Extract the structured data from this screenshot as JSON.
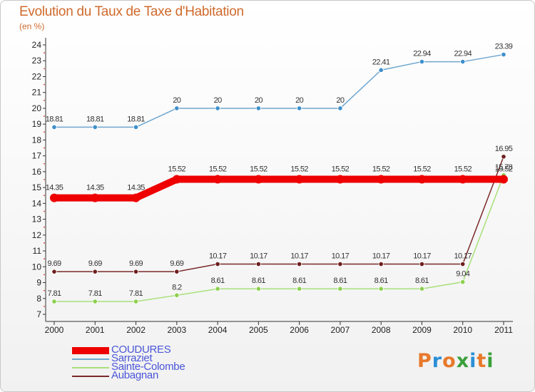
{
  "chart": {
    "title": "Evolution du Taux de Taxe d'Habitation",
    "unit": "(en %)"
  },
  "logo": {
    "text": "Proxiti",
    "colors": [
      "#e8792b",
      "#2b8fd6",
      "#e8792b",
      "#3aa03a",
      "#2b8fd6",
      "#e8792b",
      "#3aa03a"
    ]
  },
  "chart_data": {
    "type": "line",
    "title": "Evolution du Taux de Taxe d'Habitation",
    "subtitle": "(en %)",
    "xlabel": "",
    "ylabel": "",
    "x": [
      "2000",
      "2001",
      "2002",
      "2003",
      "2004",
      "2005",
      "2006",
      "2007",
      "2008",
      "2009",
      "2010",
      "2011"
    ],
    "ylim": [
      7,
      24
    ],
    "yticks": [
      7,
      8,
      9,
      10,
      11,
      12,
      13,
      14,
      15,
      16,
      17,
      18,
      19,
      20,
      21,
      22,
      23,
      24
    ],
    "grid": false,
    "legend_position": "bottom-left",
    "series": [
      {
        "name": "Sarraziet",
        "color": "#6fa6cf",
        "marker_color": "#3d8fcc",
        "values": [
          18.81,
          18.81,
          18.81,
          20,
          20,
          20,
          20,
          20,
          22.41,
          22.94,
          22.94,
          23.39
        ],
        "labels": [
          "18.81",
          "18.81",
          "18.81",
          "20",
          "20",
          "20",
          "20",
          "20",
          "22.41",
          "22.94",
          "22.94",
          "23.39"
        ]
      },
      {
        "name": "Aubagnan",
        "color": "#7a2a2a",
        "marker_color": "#6e1e1e",
        "values": [
          9.69,
          9.69,
          9.69,
          9.69,
          10.17,
          10.17,
          10.17,
          10.17,
          10.17,
          10.17,
          10.17,
          16.95
        ],
        "labels": [
          "9.69",
          "9.69",
          "9.69",
          "9.69",
          "10.17",
          "10.17",
          "10.17",
          "10.17",
          "10.17",
          "10.17",
          "10.17",
          "16.95"
        ]
      },
      {
        "name": "Sainte-Colombe",
        "color": "#a8e07a",
        "marker_color": "#8ccf4e",
        "values": [
          7.81,
          7.81,
          7.81,
          8.2,
          8.61,
          8.61,
          8.61,
          8.61,
          8.61,
          8.61,
          9.04,
          15.78
        ],
        "labels": [
          "7.81",
          "7.81",
          "7.81",
          "8.2",
          "8.61",
          "8.61",
          "8.61",
          "8.61",
          "8.61",
          "8.61",
          "9.04",
          "15.78"
        ]
      },
      {
        "name": "COUDURES",
        "color": "#ee0000",
        "marker_color": "#ee0000",
        "values": [
          14.35,
          14.35,
          14.35,
          15.52,
          15.52,
          15.52,
          15.52,
          15.52,
          15.52,
          15.52,
          15.52,
          15.52
        ],
        "labels": [
          "14.35",
          "14.35",
          "14.35",
          "15.52",
          "15.52",
          "15.52",
          "15.52",
          "15.52",
          "15.52",
          "15.52",
          "15.52",
          "15.52"
        ]
      }
    ],
    "legend": [
      {
        "name": "COUDURES",
        "color": "#ee0000"
      },
      {
        "name": "Sarraziet",
        "color": "#6fa6cf"
      },
      {
        "name": "Sainte-Colombe",
        "color": "#a8e07a"
      },
      {
        "name": "Aubagnan",
        "color": "#7a2a2a"
      }
    ]
  }
}
